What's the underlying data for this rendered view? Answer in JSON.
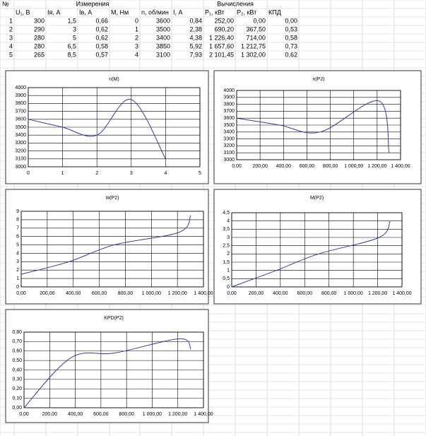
{
  "table": {
    "groups": [
      "№",
      "Измерения",
      "Вычисления"
    ],
    "columns": [
      "U₁, В",
      "Iя, А",
      "Iв, А",
      "М, Нм",
      "n, об/мин",
      "I, А",
      "P₁, кВт",
      "P₂, кВт",
      "КПД"
    ],
    "rows": [
      [
        "1",
        "300",
        "1,5",
        "0,66",
        "0",
        "3600",
        "0,84",
        "252,00",
        "0,00",
        "0,00"
      ],
      [
        "2",
        "290",
        "3",
        "0,62",
        "1",
        "3500",
        "2,38",
        "690,20",
        "367,50",
        "0,53"
      ],
      [
        "3",
        "280",
        "5",
        "0,62",
        "2",
        "3400",
        "4,38",
        "1 226,40",
        "714,00",
        "0,58"
      ],
      [
        "4",
        "280",
        "6,5",
        "0,58",
        "3",
        "3850",
        "5,92",
        "1 657,60",
        "1 212,75",
        "0,73"
      ],
      [
        "5",
        "265",
        "8,5",
        "0,57",
        "4",
        "3100",
        "7,93",
        "2 101,45",
        "1 302,00",
        "0,62"
      ]
    ]
  },
  "chart_data": [
    {
      "type": "line",
      "title": "n(M)",
      "x": [
        0,
        1,
        2,
        3,
        4
      ],
      "series": [
        {
          "color": "#3a3a9a",
          "values": [
            3600,
            3500,
            3400,
            3850,
            3100
          ]
        }
      ],
      "xlim": [
        0,
        5
      ],
      "xticks": [
        0,
        1,
        2,
        3,
        4,
        5
      ],
      "ylim": [
        3000,
        4000
      ],
      "yticks": [
        3000,
        3100,
        3200,
        3300,
        3400,
        3500,
        3600,
        3700,
        3800,
        3900,
        4000
      ],
      "grid": true
    },
    {
      "type": "line",
      "title": "n(P2)",
      "x": [
        0,
        367.5,
        714,
        1212.75,
        1302
      ],
      "series": [
        {
          "color": "#3a3a9a",
          "values": [
            3600,
            3500,
            3400,
            3850,
            3100
          ]
        }
      ],
      "xlim": [
        0,
        1400
      ],
      "xticks": [
        {
          "value": 0,
          "label": "0,00"
        },
        {
          "value": 200,
          "label": "200,00"
        },
        {
          "value": 400,
          "label": "400,00"
        },
        {
          "value": 600,
          "label": "600,00"
        },
        {
          "value": 800,
          "label": "800,00"
        },
        {
          "value": 1000,
          "label": "1 000,00"
        },
        {
          "value": 1200,
          "label": "1 200,00"
        },
        {
          "value": 1400,
          "label": "1 400,00"
        }
      ],
      "ylim": [
        3000,
        4000
      ],
      "yticks": [
        3000,
        3100,
        3200,
        3300,
        3400,
        3500,
        3600,
        3700,
        3800,
        3900,
        4000
      ],
      "grid": true
    },
    {
      "type": "line",
      "title": "Iя(P2)",
      "x": [
        0,
        367.5,
        714,
        1212.75,
        1302
      ],
      "series": [
        {
          "color": "#3a3a9a",
          "values": [
            1.5,
            3,
            5,
            6.5,
            8.5
          ]
        }
      ],
      "xlim": [
        0,
        1400
      ],
      "xticks": [
        {
          "value": 0,
          "label": "0,00"
        },
        {
          "value": 200,
          "label": "200,00"
        },
        {
          "value": 400,
          "label": "400,00"
        },
        {
          "value": 600,
          "label": "600,00"
        },
        {
          "value": 800,
          "label": "800,00"
        },
        {
          "value": 1000,
          "label": "1 000,00"
        },
        {
          "value": 1200,
          "label": "1 200,00"
        },
        {
          "value": 1400,
          "label": "1 400,00"
        }
      ],
      "ylim": [
        0,
        9
      ],
      "yticks": [
        0,
        1,
        2,
        3,
        4,
        5,
        6,
        7,
        8,
        9
      ],
      "grid": true
    },
    {
      "type": "line",
      "title": "M(P2)",
      "x": [
        0,
        367.5,
        714,
        1212.75,
        1302
      ],
      "series": [
        {
          "color": "#3a3a9a",
          "values": [
            0,
            1,
            2,
            3,
            4
          ]
        }
      ],
      "xlim": [
        0,
        1400
      ],
      "xticks": [
        {
          "value": 0,
          "label": "0,00"
        },
        {
          "value": 200,
          "label": "200,00"
        },
        {
          "value": 400,
          "label": "400,00"
        },
        {
          "value": 600,
          "label": "600,00"
        },
        {
          "value": 800,
          "label": "800,00"
        },
        {
          "value": 1000,
          "label": "1 000,00"
        },
        {
          "value": 1200,
          "label": "1 200,00"
        },
        {
          "value": 1400,
          "label": "1 400,00"
        }
      ],
      "ylim": [
        0,
        4.5
      ],
      "yticks": [
        0,
        {
          "value": 0.5,
          "label": "0,5"
        },
        1,
        {
          "value": 1.5,
          "label": "1,5"
        },
        2,
        {
          "value": 2.5,
          "label": "2,5"
        },
        3,
        {
          "value": 3.5,
          "label": "3,5"
        },
        4,
        {
          "value": 4.5,
          "label": "4,5"
        }
      ],
      "grid": true
    },
    {
      "type": "line",
      "title": "KPD(P2)",
      "x": [
        0,
        367.5,
        714,
        1212.75,
        1302
      ],
      "series": [
        {
          "color": "#3a3a9a",
          "values": [
            0,
            0.53,
            0.58,
            0.73,
            0.62
          ]
        }
      ],
      "xlim": [
        0,
        1400
      ],
      "xticks": [
        {
          "value": 0,
          "label": "0,00"
        },
        {
          "value": 200,
          "label": "200,00"
        },
        {
          "value": 400,
          "label": "400,00"
        },
        {
          "value": 600,
          "label": "600,00"
        },
        {
          "value": 800,
          "label": "800,00"
        },
        {
          "value": 1000,
          "label": "1 000,00"
        },
        {
          "value": 1200,
          "label": "1 200,00"
        },
        {
          "value": 1400,
          "label": "1 400,00"
        }
      ],
      "ylim": [
        0,
        0.8
      ],
      "yticks": [
        {
          "value": 0,
          "label": "0,00"
        },
        {
          "value": 0.1,
          "label": "0,10"
        },
        {
          "value": 0.2,
          "label": "0,20"
        },
        {
          "value": 0.3,
          "label": "0,30"
        },
        {
          "value": 0.4,
          "label": "0,40"
        },
        {
          "value": 0.5,
          "label": "0,50"
        },
        {
          "value": 0.6,
          "label": "0,60"
        },
        {
          "value": 0.7,
          "label": "0,70"
        },
        {
          "value": 0.8,
          "label": "0,80"
        }
      ],
      "grid": true
    }
  ]
}
